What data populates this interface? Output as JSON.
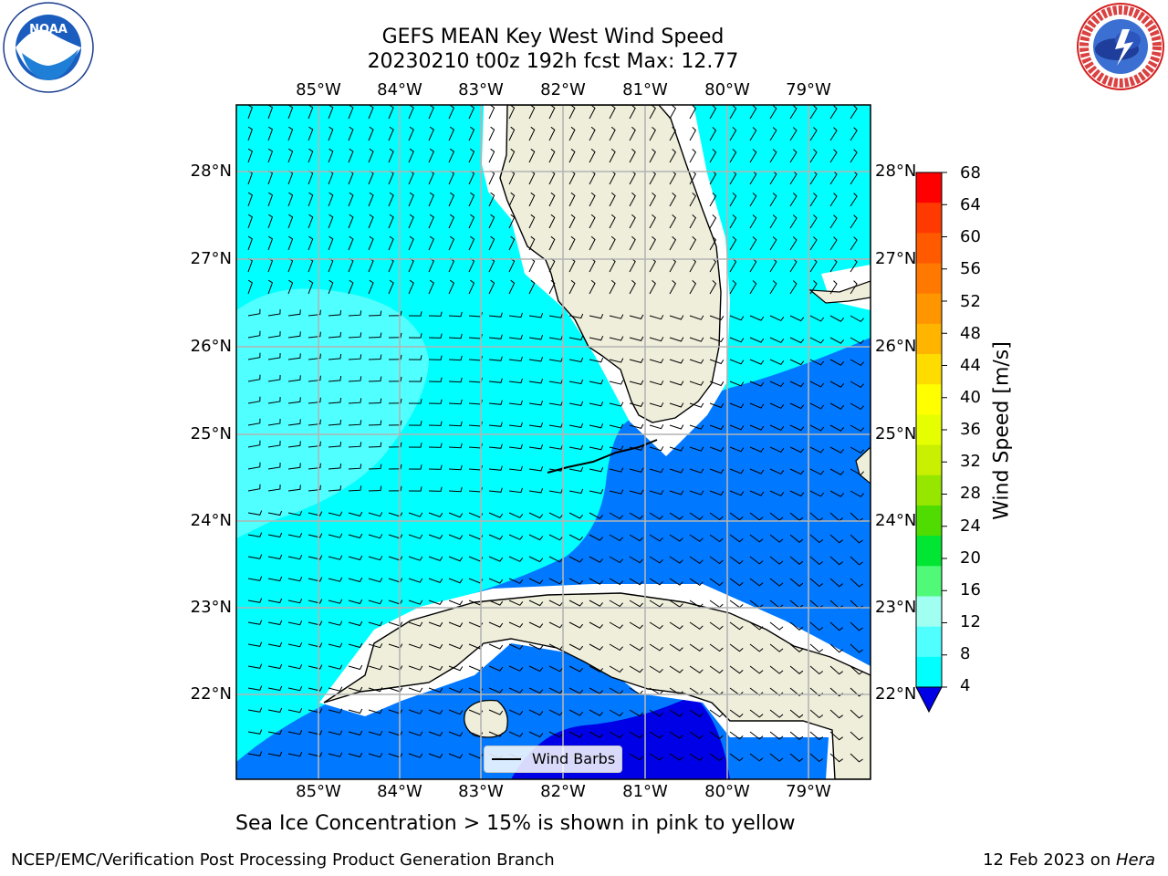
{
  "title_line1": "GEFS MEAN Key West Wind Speed",
  "title_line2": "20230210 t00z 192h fcst   Max: 12.77",
  "lon_labels": [
    "85°W",
    "84°W",
    "83°W",
    "82°W",
    "81°W",
    "80°W",
    "79°W"
  ],
  "lat_labels": [
    "28°N",
    "27°N",
    "26°N",
    "25°N",
    "24°N",
    "23°N",
    "22°N"
  ],
  "legend_label": "Wind Barbs",
  "colorbar": {
    "title": "Wind Speed [m/s]",
    "ticks": [
      "68",
      "64",
      "60",
      "56",
      "52",
      "48",
      "44",
      "40",
      "36",
      "32",
      "28",
      "24",
      "20",
      "16",
      "12",
      "8",
      "4"
    ],
    "colors": [
      "#ff0000",
      "#ff3a00",
      "#ff5a00",
      "#ff7800",
      "#ff9600",
      "#ffb400",
      "#ffdc00",
      "#ffff00",
      "#e6ff00",
      "#c8f000",
      "#96e600",
      "#50dc00",
      "#00e632",
      "#50fa78",
      "#a0fff0",
      "#50ffff",
      "#00ffff",
      "#0078ff"
    ],
    "under_color": "#0000e6"
  },
  "note": "Sea Ice Concentration > 15% is shown in pink to yellow",
  "footer_left": "NCEP/EMC/Verification Post Processing Product Generation Branch",
  "footer_right_prefix": "12 Feb 2023 on ",
  "footer_right_host": "Hera",
  "logos": {
    "left": "NOAA",
    "right": "NATIONAL WEATHER SERVICE"
  },
  "colors": {
    "land": "#efeedb",
    "speed_8_12": "#00ffff",
    "speed_12_16": "#50ffff",
    "speed_4_8": "#0078ff",
    "speed_lt4": "#0000e6",
    "grid": "#b4b4b4"
  }
}
